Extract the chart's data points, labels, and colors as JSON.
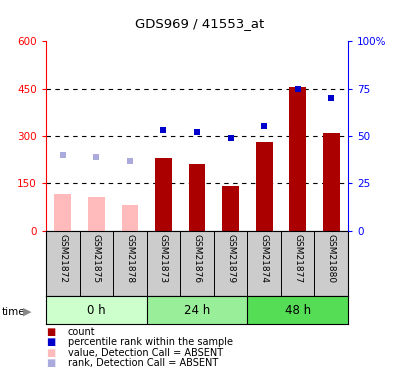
{
  "title": "GDS969 / 41553_at",
  "samples": [
    "GSM21872",
    "GSM21875",
    "GSM21878",
    "GSM21873",
    "GSM21876",
    "GSM21879",
    "GSM21874",
    "GSM21877",
    "GSM21880"
  ],
  "groups": [
    {
      "label": "0 h",
      "indices": [
        0,
        1,
        2
      ],
      "color": "#ccffcc"
    },
    {
      "label": "24 h",
      "indices": [
        3,
        4,
        5
      ],
      "color": "#99ee99"
    },
    {
      "label": "48 h",
      "indices": [
        6,
        7,
        8
      ],
      "color": "#55dd55"
    }
  ],
  "count_values": [
    null,
    null,
    null,
    230,
    210,
    140,
    280,
    455,
    310
  ],
  "absent_count_values": [
    115,
    108,
    80,
    null,
    null,
    null,
    null,
    null,
    null
  ],
  "percentile_values": [
    null,
    null,
    null,
    53,
    52,
    49,
    55,
    75,
    70
  ],
  "absent_percentile_values": [
    40,
    39,
    37,
    null,
    null,
    null,
    null,
    null,
    null
  ],
  "ylim_left": [
    0,
    600
  ],
  "ylim_right": [
    0,
    100
  ],
  "yticks_left": [
    0,
    150,
    300,
    450,
    600
  ],
  "yticks_right": [
    0,
    25,
    50,
    75,
    100
  ],
  "bar_color": "#aa0000",
  "absent_bar_color": "#ffbbbb",
  "dot_color": "#0000cc",
  "absent_dot_color": "#aaaadd",
  "bg_color": "#ffffff",
  "sample_area_color": "#cccccc"
}
